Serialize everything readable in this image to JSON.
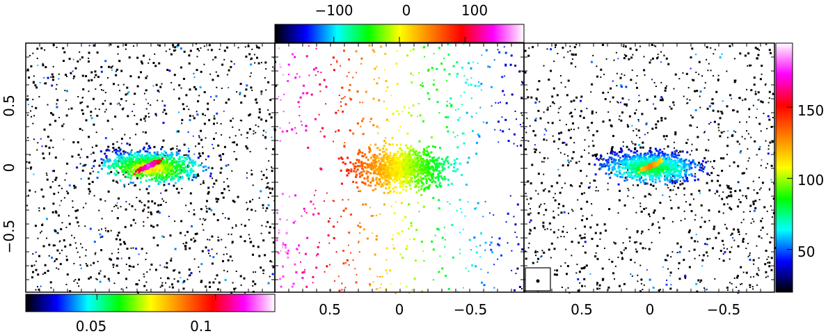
{
  "chart_data": [
    {
      "type": "heatmap",
      "panel": "left",
      "xlim": [
        0.9,
        -0.9
      ],
      "ylim": [
        -0.9,
        0.9
      ],
      "yticks": [
        0.5,
        0,
        -0.5
      ],
      "ytick_labels": [
        "0.5",
        "0",
        "−0.5"
      ],
      "colorbar": {
        "position": "bottom",
        "range": [
          0.02,
          0.125
        ],
        "ticks": [
          0.05,
          0.1
        ],
        "tick_labels": [
          "0.05",
          "0.1"
        ]
      },
      "colormap": [
        "#000000",
        "#0000ff",
        "#00ffff",
        "#00ff00",
        "#ffff00",
        "#ff8000",
        "#ff0000",
        "#ff00ff",
        "#ffffff"
      ]
    },
    {
      "type": "heatmap",
      "panel": "middle",
      "xlim": [
        0.9,
        -0.9
      ],
      "ylim": [
        -0.9,
        0.9
      ],
      "xticks": [
        0.5,
        0,
        -0.5
      ],
      "xtick_labels": [
        "0.5",
        "0",
        "−0.5"
      ],
      "colorbar": {
        "position": "top",
        "range": [
          -190,
          190
        ],
        "ticks": [
          -100,
          0,
          100
        ],
        "tick_labels": [
          "−100",
          "0",
          "100"
        ]
      },
      "colormap": [
        "#000000",
        "#0000ff",
        "#00ffff",
        "#00ff00",
        "#ffff00",
        "#ff8000",
        "#ff0000",
        "#ff00ff",
        "#ffffff"
      ]
    },
    {
      "type": "heatmap",
      "panel": "right",
      "xlim": [
        0.9,
        -0.9
      ],
      "ylim": [
        -0.9,
        0.9
      ],
      "xticks": [
        0.5,
        0,
        -0.5
      ],
      "xtick_labels": [
        "0.5",
        "0",
        "−0.5"
      ],
      "colorbar": {
        "position": "right",
        "range": [
          20,
          195
        ],
        "ticks": [
          50,
          100,
          150
        ],
        "tick_labels": [
          "50",
          "100",
          "150"
        ]
      },
      "colormap": [
        "#000000",
        "#0000ff",
        "#00ffff",
        "#00ff00",
        "#ffff00",
        "#ff8000",
        "#ff0000",
        "#ff00ff",
        "#ffffff"
      ]
    }
  ]
}
